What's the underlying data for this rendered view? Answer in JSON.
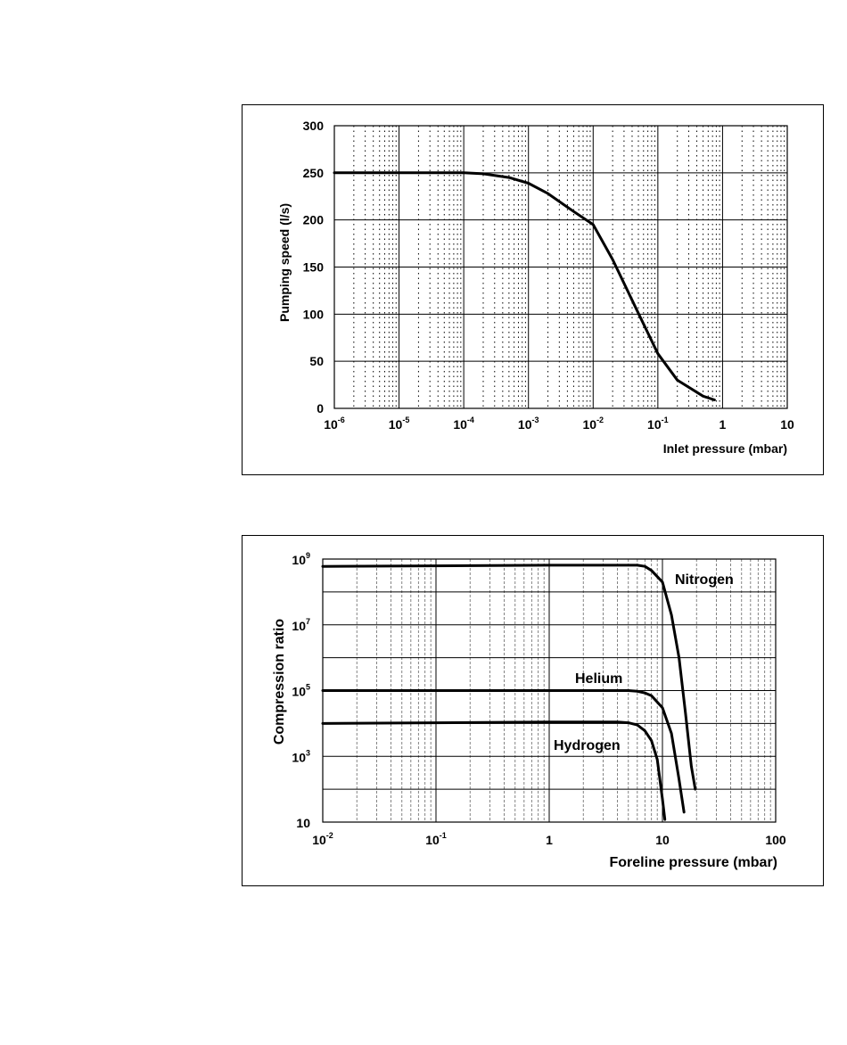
{
  "chart_data": [
    {
      "type": "line",
      "xscale": "log",
      "xlim": [
        1e-06,
        10
      ],
      "ylim": [
        0,
        300
      ],
      "xlabel": "Inlet pressure (mbar)",
      "ylabel": "Pumping speed (l/s)",
      "xticks": [
        {
          "base": "10",
          "exp": "-6",
          "value": 1e-06
        },
        {
          "base": "10",
          "exp": "-5",
          "value": 1e-05
        },
        {
          "base": "10",
          "exp": "-4",
          "value": 0.0001
        },
        {
          "base": "10",
          "exp": "-3",
          "value": 0.001
        },
        {
          "base": "10",
          "exp": "-2",
          "value": 0.01
        },
        {
          "base": "10",
          "exp": "-1",
          "value": 0.1
        },
        {
          "base": "1",
          "exp": "",
          "value": 1
        },
        {
          "base": "10",
          "exp": "",
          "value": 10
        }
      ],
      "yticks": [
        {
          "label": "0",
          "value": 0
        },
        {
          "label": "50",
          "value": 50
        },
        {
          "label": "100",
          "value": 100
        },
        {
          "label": "150",
          "value": 150
        },
        {
          "label": "200",
          "value": 200
        },
        {
          "label": "250",
          "value": 250
        },
        {
          "label": "300",
          "value": 300
        }
      ],
      "grid": true,
      "series": [
        {
          "x": [
            1e-06,
            1e-05,
            0.0001,
            0.0002,
            0.0005,
            0.001,
            0.002,
            0.005,
            0.01,
            0.02,
            0.05,
            0.1,
            0.2,
            0.5,
            0.75
          ],
          "y": [
            250,
            250,
            250,
            249,
            245,
            239,
            228,
            209,
            195,
            158,
            101,
            58,
            30,
            13,
            9
          ]
        }
      ]
    },
    {
      "type": "line",
      "xscale": "log",
      "yscale": "log",
      "xlim": [
        0.01,
        100
      ],
      "ylim": [
        10,
        1000000000
      ],
      "xlabel": "Foreline pressure (mbar)",
      "ylabel": "Compression ratio",
      "xticks": [
        {
          "base": "10",
          "exp": "-2",
          "value": 0.01
        },
        {
          "base": "10",
          "exp": "-1",
          "value": 0.1
        },
        {
          "base": "1",
          "exp": "",
          "value": 1
        },
        {
          "base": "10",
          "exp": "",
          "value": 10
        },
        {
          "base": "100",
          "exp": "",
          "value": 100
        }
      ],
      "yticks": [
        {
          "base": "10",
          "exp": "",
          "value": 10
        },
        {
          "base": "10",
          "exp": "3",
          "value": 1000
        },
        {
          "base": "10",
          "exp": "5",
          "value": 100000
        },
        {
          "base": "10",
          "exp": "7",
          "value": 10000000
        },
        {
          "base": "10",
          "exp": "9",
          "value": 1000000000
        }
      ],
      "grid": true,
      "series": [
        {
          "name": "Nitrogen",
          "x": [
            0.01,
            1,
            6,
            7,
            8,
            10,
            12,
            14,
            16,
            18,
            19.5
          ],
          "y": [
            600000000,
            650000000,
            650000000,
            600000000,
            450000000,
            200000000,
            20000000,
            1000000,
            20000,
            500,
            100
          ]
        },
        {
          "name": "Helium",
          "x": [
            0.01,
            1,
            5,
            6,
            7,
            8,
            10,
            12,
            14,
            15.5
          ],
          "y": [
            100000,
            100000,
            100000,
            95000,
            85000,
            70000,
            30000,
            5000,
            200,
            20
          ]
        },
        {
          "name": "Hydrogen",
          "x": [
            0.01,
            1,
            4,
            5,
            6,
            7,
            8,
            9,
            10,
            10.5
          ],
          "y": [
            10000,
            11000,
            11000,
            10500,
            9000,
            6000,
            3000,
            800,
            50,
            12
          ]
        }
      ]
    }
  ]
}
